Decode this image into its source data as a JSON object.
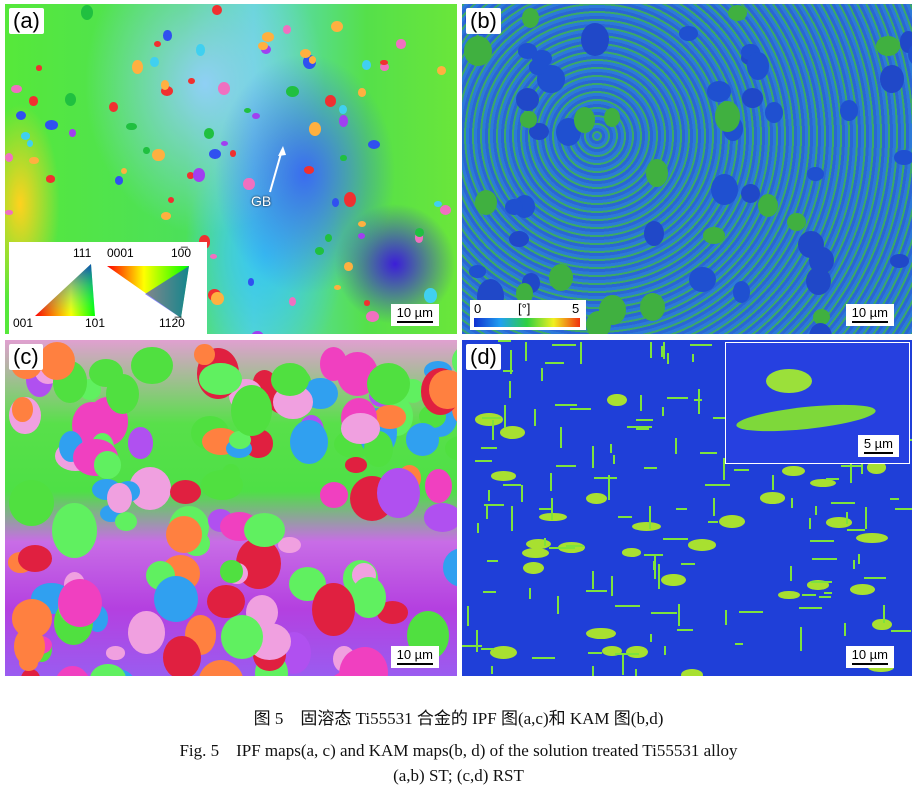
{
  "panels": {
    "a": {
      "label": "(a)",
      "scale": "10 µm",
      "annotation": "GB",
      "legend": {
        "cubic": [
          "111",
          "001",
          "101"
        ],
        "hex": [
          "0001",
          "10̅0",
          "112̅0"
        ]
      }
    },
    "b": {
      "label": "(b)",
      "scale": "10 µm",
      "colorbar": {
        "min": "0",
        "unit": "[°]",
        "max": "5"
      }
    },
    "c": {
      "label": "(c)",
      "scale": "10 µm"
    },
    "d": {
      "label": "(d)",
      "scale": "10 µm",
      "inset_scale": "5 µm"
    }
  },
  "caption": {
    "zh": "图 5　固溶态 Ti55531 合金的 IPF 图(a,c)和 KAM 图(b,d)",
    "en": "Fig. 5　IPF maps(a, c) and KAM maps(b, d) of the solution treated Ti55531 alloy",
    "sub": "(a,b) ST; (c,d) RST"
  }
}
